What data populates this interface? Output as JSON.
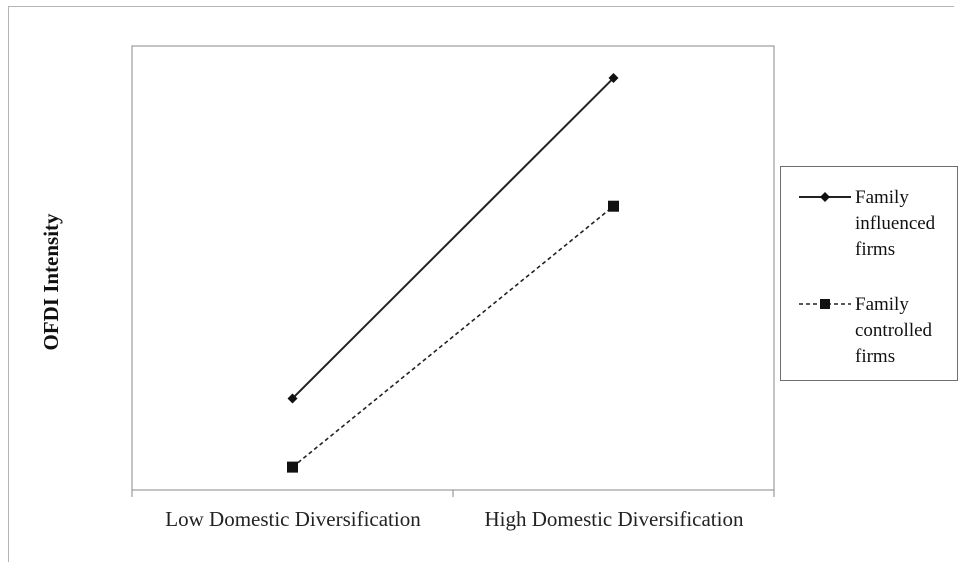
{
  "chart_data": {
    "type": "line",
    "title": "",
    "xlabel": "",
    "ylabel": "OFDI Intensity",
    "categories": [
      "Low Domestic Diversification",
      "High Domestic Diversification"
    ],
    "series": [
      {
        "name": "Family influenced firms",
        "values": [
          0.2,
          0.9
        ],
        "marker": "diamond",
        "line": "solid",
        "color": "#222222"
      },
      {
        "name": "Family controlled firms",
        "values": [
          0.05,
          0.62
        ],
        "marker": "square",
        "line": "dashed",
        "color": "#222222"
      }
    ],
    "ylim": [
      0,
      0.97
    ],
    "grid": false,
    "legend_position": "right"
  },
  "legend": {
    "items": [
      {
        "lines": [
          "Family",
          "influenced",
          "firms"
        ]
      },
      {
        "lines": [
          "Family",
          "controlled",
          "firms"
        ]
      }
    ]
  }
}
